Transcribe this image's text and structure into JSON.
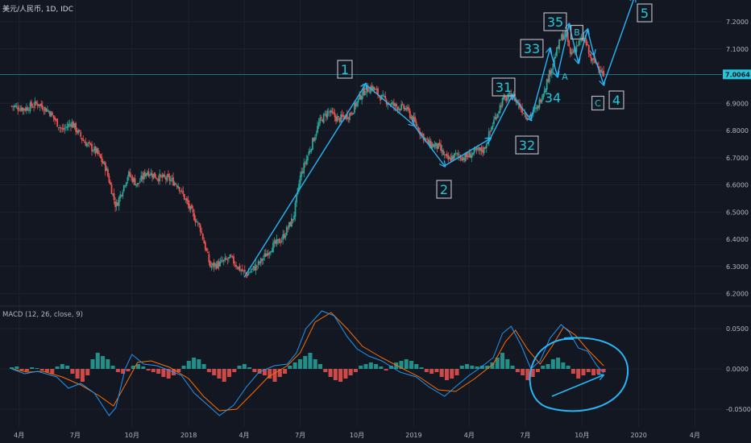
{
  "chart_data": [
    {
      "type": "candlestick",
      "title": "美元/人民币, 1D, IDC",
      "y_ticks": [
        "7.2000",
        "7.1000",
        "7.0064",
        "6.9000",
        "6.8000",
        "6.7000",
        "6.6000",
        "6.5000",
        "6.4000",
        "6.3000",
        "6.2000"
      ],
      "y_tick_values": [
        7.2,
        7.1,
        7.0064,
        6.9,
        6.8,
        6.7,
        6.6,
        6.5,
        6.4,
        6.3,
        6.2
      ],
      "ylim": [
        6.16,
        7.28
      ],
      "last_price": "7.0064",
      "last_price_value": 7.0064,
      "x_ticks": [
        "4月",
        "7月",
        "10月",
        "2018",
        "4月",
        "7月",
        "10月",
        "2019",
        "4月",
        "7月",
        "10月",
        "2020",
        "4月"
      ],
      "close_path": [
        [
          "2017-03-20",
          6.89
        ],
        [
          "2017-04-10",
          6.88
        ],
        [
          "2017-05-01",
          6.9
        ],
        [
          "2017-05-20",
          6.87
        ],
        [
          "2017-06-10",
          6.8
        ],
        [
          "2017-06-25",
          6.83
        ],
        [
          "2017-07-15",
          6.76
        ],
        [
          "2017-08-05",
          6.72
        ],
        [
          "2017-08-20",
          6.66
        ],
        [
          "2017-09-05",
          6.52
        ],
        [
          "2017-09-15",
          6.58
        ],
        [
          "2017-09-25",
          6.64
        ],
        [
          "2017-10-10",
          6.6
        ],
        [
          "2017-10-25",
          6.65
        ],
        [
          "2017-11-10",
          6.63
        ],
        [
          "2017-12-01",
          6.62
        ],
        [
          "2017-12-15",
          6.6
        ],
        [
          "2018-01-01",
          6.52
        ],
        [
          "2018-01-20",
          6.44
        ],
        [
          "2018-02-05",
          6.3
        ],
        [
          "2018-02-20",
          6.31
        ],
        [
          "2018-03-10",
          6.33
        ],
        [
          "2018-03-25",
          6.29
        ],
        [
          "2018-04-05",
          6.27
        ],
        [
          "2018-04-25",
          6.31
        ],
        [
          "2018-05-15",
          6.37
        ],
        [
          "2018-06-01",
          6.4
        ],
        [
          "2018-06-20",
          6.48
        ],
        [
          "2018-07-01",
          6.63
        ],
        [
          "2018-07-15",
          6.72
        ],
        [
          "2018-08-01",
          6.83
        ],
        [
          "2018-08-15",
          6.87
        ],
        [
          "2018-09-01",
          6.84
        ],
        [
          "2018-09-20",
          6.86
        ],
        [
          "2018-10-10",
          6.94
        ],
        [
          "2018-10-25",
          6.96
        ],
        [
          "2018-11-10",
          6.92
        ],
        [
          "2018-12-01",
          6.89
        ],
        [
          "2018-12-20",
          6.88
        ],
        [
          "2019-01-10",
          6.8
        ],
        [
          "2019-01-25",
          6.75
        ],
        [
          "2019-02-10",
          6.74
        ],
        [
          "2019-02-25",
          6.69
        ],
        [
          "2019-03-10",
          6.71
        ],
        [
          "2019-03-25",
          6.7
        ],
        [
          "2019-04-10",
          6.72
        ],
        [
          "2019-04-25",
          6.73
        ],
        [
          "2019-05-10",
          6.83
        ],
        [
          "2019-05-25",
          6.91
        ],
        [
          "2019-06-10",
          6.93
        ],
        [
          "2019-06-25",
          6.88
        ],
        [
          "2019-07-05",
          6.85
        ],
        [
          "2019-07-20",
          6.88
        ],
        [
          "2019-08-05",
          6.98
        ],
        [
          "2019-08-15",
          7.05
        ],
        [
          "2019-08-28",
          7.14
        ],
        [
          "2019-09-05",
          7.16
        ],
        [
          "2019-09-12",
          7.08
        ],
        [
          "2019-09-25",
          7.12
        ],
        [
          "2019-10-05",
          7.14
        ],
        [
          "2019-10-15",
          7.06
        ],
        [
          "2019-10-28",
          7.04
        ],
        [
          "2019-11-05",
          7.0
        ]
      ],
      "elliott_labels": [
        {
          "text": "1",
          "boxed": true
        },
        {
          "text": "2",
          "boxed": true
        },
        {
          "text": "31",
          "boxed": true
        },
        {
          "text": "32",
          "boxed": true
        },
        {
          "text": "33",
          "boxed": true
        },
        {
          "text": "34",
          "boxed": false
        },
        {
          "text": "35",
          "boxed": true
        },
        {
          "text": "4",
          "boxed": true
        },
        {
          "text": "5",
          "boxed": true
        },
        {
          "text": "A",
          "boxed": false
        },
        {
          "text": "B",
          "boxed": true
        },
        {
          "text": "C",
          "boxed": true
        }
      ],
      "wave_path": [
        [
          "2018-04-01",
          6.26
        ],
        [
          "2018-10-15",
          6.97
        ],
        [
          "2019-01-01",
          6.82
        ],
        [
          "2019-02-20",
          6.67
        ],
        [
          "2019-05-05",
          6.77
        ],
        [
          "2019-06-10",
          6.93
        ],
        [
          "2019-07-10",
          6.84
        ],
        [
          "2019-08-10",
          7.1
        ],
        [
          "2019-08-22",
          7.0
        ],
        [
          "2019-09-10",
          7.19
        ],
        [
          "2019-09-25",
          7.05
        ],
        [
          "2019-10-10",
          7.17
        ],
        [
          "2019-10-20",
          7.08
        ],
        [
          "2019-11-05",
          6.97
        ],
        [
          "2019-12-25",
          7.29
        ]
      ]
    },
    {
      "type": "macd",
      "title": "MACD (12, 26, close, 9)",
      "y_ticks": [
        "0.0500",
        "0.0000",
        "-0.0500"
      ],
      "y_tick_values": [
        0.05,
        0.0,
        -0.05
      ],
      "ylim": [
        -0.072,
        0.078
      ],
      "colors": {
        "macd": "#2196f3",
        "signal": "#ff6d00",
        "hist_up": "#26a69a",
        "hist_down": "#ef5350"
      },
      "macd_path": [
        [
          "2017-03-20",
          0.0
        ],
        [
          "2017-04-10",
          -0.006
        ],
        [
          "2017-05-01",
          -0.003
        ],
        [
          "2017-06-01",
          -0.01
        ],
        [
          "2017-06-20",
          -0.024
        ],
        [
          "2017-07-10",
          -0.018
        ],
        [
          "2017-08-01",
          -0.03
        ],
        [
          "2017-08-25",
          -0.058
        ],
        [
          "2017-09-05",
          -0.048
        ],
        [
          "2017-09-20",
          0.0
        ],
        [
          "2017-10-01",
          0.018
        ],
        [
          "2017-10-20",
          0.006
        ],
        [
          "2017-11-10",
          0.004
        ],
        [
          "2017-12-01",
          -0.002
        ],
        [
          "2017-12-20",
          -0.008
        ],
        [
          "2018-01-10",
          -0.03
        ],
        [
          "2018-02-01",
          -0.045
        ],
        [
          "2018-02-20",
          -0.058
        ],
        [
          "2018-03-15",
          -0.045
        ],
        [
          "2018-04-05",
          -0.022
        ],
        [
          "2018-04-25",
          -0.004
        ],
        [
          "2018-05-20",
          0.004
        ],
        [
          "2018-06-10",
          0.006
        ],
        [
          "2018-06-25",
          0.02
        ],
        [
          "2018-07-10",
          0.05
        ],
        [
          "2018-08-05",
          0.072
        ],
        [
          "2018-08-25",
          0.066
        ],
        [
          "2018-09-15",
          0.04
        ],
        [
          "2018-10-01",
          0.025
        ],
        [
          "2018-10-20",
          0.016
        ],
        [
          "2018-11-10",
          0.01
        ],
        [
          "2018-12-10",
          -0.004
        ],
        [
          "2019-01-05",
          -0.01
        ],
        [
          "2019-01-25",
          -0.022
        ],
        [
          "2019-02-20",
          -0.034
        ],
        [
          "2019-03-10",
          -0.022
        ],
        [
          "2019-04-01",
          -0.008
        ],
        [
          "2019-04-20",
          0.002
        ],
        [
          "2019-05-10",
          0.014
        ],
        [
          "2019-05-25",
          0.044
        ],
        [
          "2019-06-08",
          0.053
        ],
        [
          "2019-06-25",
          0.028
        ],
        [
          "2019-07-10",
          0.0
        ],
        [
          "2019-07-25",
          0.01
        ],
        [
          "2019-08-10",
          0.038
        ],
        [
          "2019-08-28",
          0.055
        ],
        [
          "2019-09-10",
          0.046
        ],
        [
          "2019-09-25",
          0.026
        ],
        [
          "2019-10-10",
          0.022
        ],
        [
          "2019-10-25",
          0.004
        ],
        [
          "2019-11-05",
          -0.005
        ]
      ],
      "signal_path": [
        [
          "2017-03-20",
          0.0
        ],
        [
          "2017-04-15",
          -0.004
        ],
        [
          "2017-05-10",
          -0.003
        ],
        [
          "2017-06-10",
          -0.01
        ],
        [
          "2017-07-10",
          -0.02
        ],
        [
          "2017-08-10",
          -0.034
        ],
        [
          "2017-09-01",
          -0.046
        ],
        [
          "2017-09-20",
          -0.02
        ],
        [
          "2017-10-10",
          0.008
        ],
        [
          "2017-11-01",
          0.01
        ],
        [
          "2017-12-01",
          0.002
        ],
        [
          "2018-01-01",
          -0.012
        ],
        [
          "2018-01-25",
          -0.034
        ],
        [
          "2018-02-20",
          -0.052
        ],
        [
          "2018-03-20",
          -0.05
        ],
        [
          "2018-04-15",
          -0.03
        ],
        [
          "2018-05-10",
          -0.01
        ],
        [
          "2018-06-10",
          0.004
        ],
        [
          "2018-07-01",
          0.02
        ],
        [
          "2018-07-25",
          0.058
        ],
        [
          "2018-08-20",
          0.07
        ],
        [
          "2018-09-15",
          0.05
        ],
        [
          "2018-10-10",
          0.028
        ],
        [
          "2018-11-10",
          0.014
        ],
        [
          "2018-12-10",
          0.002
        ],
        [
          "2019-01-10",
          -0.01
        ],
        [
          "2019-02-10",
          -0.026
        ],
        [
          "2019-03-10",
          -0.028
        ],
        [
          "2019-04-10",
          -0.012
        ],
        [
          "2019-05-10",
          0.006
        ],
        [
          "2019-05-30",
          0.034
        ],
        [
          "2019-06-15",
          0.048
        ],
        [
          "2019-07-05",
          0.024
        ],
        [
          "2019-07-25",
          0.006
        ],
        [
          "2019-08-15",
          0.03
        ],
        [
          "2019-09-01",
          0.052
        ],
        [
          "2019-09-20",
          0.042
        ],
        [
          "2019-10-10",
          0.024
        ],
        [
          "2019-11-05",
          0.004
        ]
      ],
      "histogram_values": [
        0.002,
        0.003,
        -0.002,
        -0.003,
        0.002,
        0.001,
        -0.002,
        -0.004,
        -0.006,
        0.003,
        0.006,
        0.004,
        -0.006,
        -0.012,
        -0.016,
        -0.008,
        0.012,
        0.02,
        0.016,
        0.012,
        0.004,
        -0.004,
        -0.006,
        -0.003,
        0.004,
        0.006,
        0.003,
        -0.002,
        -0.004,
        -0.006,
        -0.01,
        -0.012,
        -0.008,
        -0.004,
        0.004,
        0.01,
        0.014,
        0.012,
        0.006,
        -0.004,
        -0.008,
        -0.012,
        -0.016,
        -0.01,
        -0.004,
        0.004,
        0.006,
        0.002,
        -0.004,
        -0.006,
        -0.008,
        -0.012,
        -0.016,
        -0.01,
        -0.006,
        0.004,
        0.008,
        0.012,
        0.016,
        0.02,
        0.012,
        0.006,
        -0.004,
        -0.01,
        -0.014,
        -0.016,
        -0.012,
        -0.008,
        -0.004,
        0.004,
        0.006,
        0.008,
        0.006,
        0.003,
        -0.002,
        0.004,
        0.008,
        0.01,
        0.012,
        0.01,
        0.006,
        0.002,
        -0.004,
        -0.006,
        -0.004,
        -0.01,
        -0.014,
        -0.012,
        -0.008,
        0.004,
        0.006,
        0.004,
        0.003,
        0.004,
        0.004,
        0.008,
        0.014,
        0.02,
        0.012,
        0.004,
        -0.004,
        -0.008,
        -0.014,
        -0.01,
        -0.004,
        0.004,
        0.006,
        0.012,
        0.014,
        0.008,
        0.004,
        -0.006,
        -0.012,
        -0.008,
        -0.004,
        -0.008,
        -0.006,
        -0.004
      ]
    }
  ]
}
